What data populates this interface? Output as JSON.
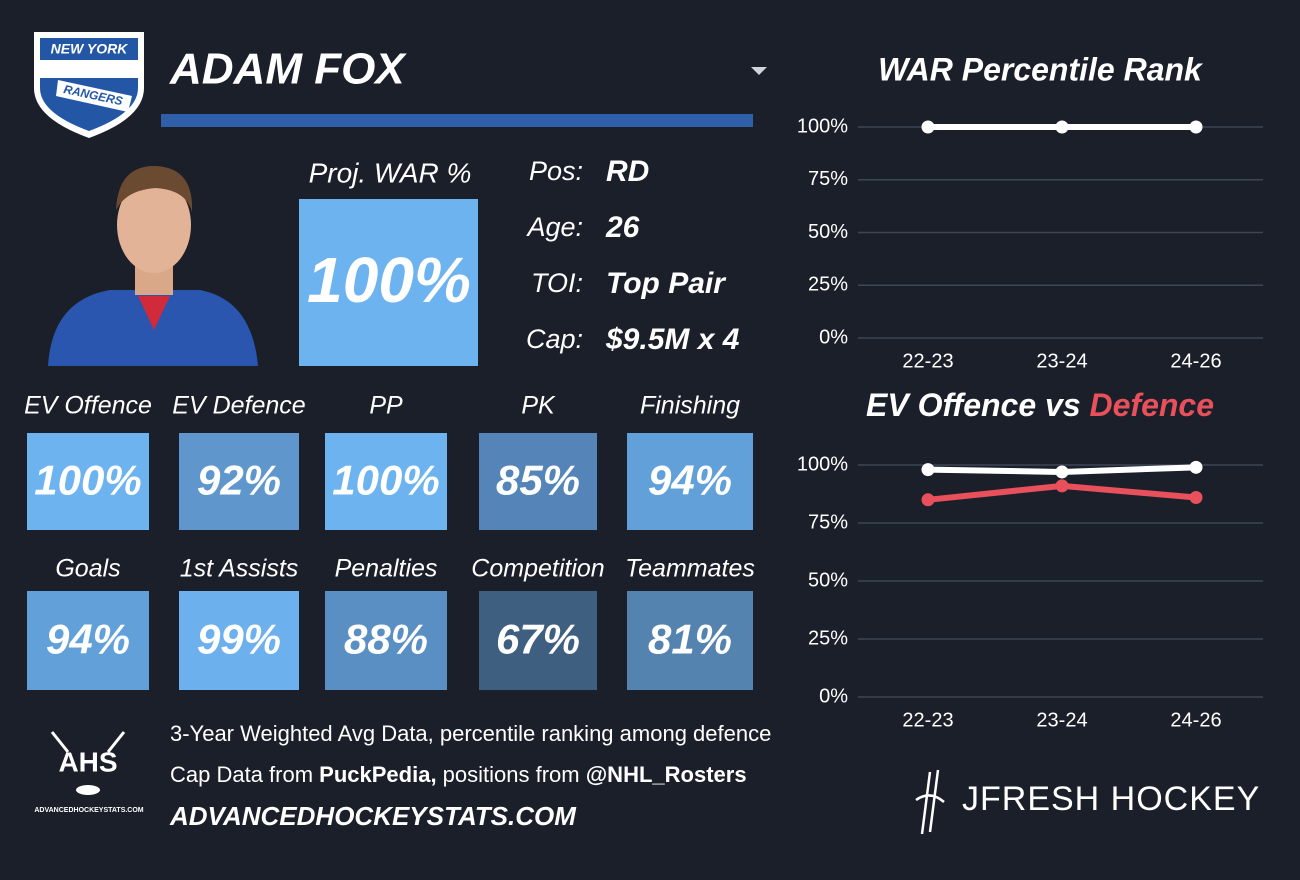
{
  "team_logo": {
    "line1": "NEW YORK",
    "line2": "RANGERS"
  },
  "player": {
    "name": "ADAM FOX"
  },
  "proj_war": {
    "label": "Proj. WAR %",
    "value": 100,
    "value_label": "100%",
    "color": "#6db3f0"
  },
  "bio": [
    {
      "label": "Pos:",
      "value": "RD"
    },
    {
      "label": "Age:",
      "value": "26"
    },
    {
      "label": "TOI:",
      "value": "Top Pair"
    },
    {
      "label": "Cap:",
      "value": "$9.5M x 4"
    }
  ],
  "tiles": [
    {
      "label": "EV Offence",
      "value": 100,
      "value_label": "100%",
      "color": "#6db3f0"
    },
    {
      "label": "EV Defence",
      "value": 92,
      "value_label": "92%",
      "color": "#5f97cc"
    },
    {
      "label": "PP",
      "value": 100,
      "value_label": "100%",
      "color": "#6db3f0"
    },
    {
      "label": "PK",
      "value": 85,
      "value_label": "85%",
      "color": "#5585b8"
    },
    {
      "label": "Finishing",
      "value": 94,
      "value_label": "94%",
      "color": "#62a0da"
    },
    {
      "label": "Goals",
      "value": 94,
      "value_label": "94%",
      "color": "#62a0da"
    },
    {
      "label": "1st Assists",
      "value": 99,
      "value_label": "99%",
      "color": "#6cb0ee"
    },
    {
      "label": "Penalties",
      "value": 88,
      "value_label": "88%",
      "color": "#5a8fc3"
    },
    {
      "label": "Competition",
      "value": 67,
      "value_label": "67%",
      "color": "#3f5f80"
    },
    {
      "label": "Teammates",
      "value": 81,
      "value_label": "81%",
      "color": "#5583b0"
    }
  ],
  "footer": {
    "line1": "3-Year Weighted Avg Data, percentile ranking among defence",
    "line2_a": "Cap Data from ",
    "line2_b": "PuckPedia,",
    "line2_c": " positions from ",
    "line2_d": "@NHL_Rosters",
    "line3": "ADVANCEDHOCKEYSTATS.COM",
    "ahs_logo": "AHS",
    "ahs_url": "ADVANCEDHOCKEYSTATS.COM",
    "brand": "JFRESH HOCKEY"
  },
  "chart_data": [
    {
      "type": "line",
      "title": "WAR Percentile Rank",
      "categories": [
        "22-23",
        "23-24",
        "24-26"
      ],
      "series": [
        {
          "color": "#ffffff",
          "values": [
            100,
            100,
            100
          ]
        }
      ],
      "ylim": [
        0,
        100
      ],
      "yticks": [
        {
          "value": 0,
          "label": "0%"
        },
        {
          "value": 25,
          "label": "25%"
        },
        {
          "value": 50,
          "label": "50%"
        },
        {
          "value": 75,
          "label": "75%"
        },
        {
          "value": 100,
          "label": "100%"
        }
      ],
      "grid": true
    },
    {
      "type": "line",
      "title": "EV Offence vs ",
      "title_highlight": "Defence",
      "title_highlight_color": "#e8505b",
      "categories": [
        "22-23",
        "23-24",
        "24-26"
      ],
      "series": [
        {
          "color": "#ffffff",
          "values": [
            98,
            97,
            99
          ]
        },
        {
          "color": "#e8505b",
          "values": [
            85,
            91,
            86
          ]
        }
      ],
      "ylim": [
        0,
        100
      ],
      "yticks": [
        {
          "value": 0,
          "label": "0%"
        },
        {
          "value": 25,
          "label": "25%"
        },
        {
          "value": 50,
          "label": "50%"
        },
        {
          "value": 75,
          "label": "75%"
        },
        {
          "value": 100,
          "label": "100%"
        }
      ],
      "grid": true
    }
  ]
}
